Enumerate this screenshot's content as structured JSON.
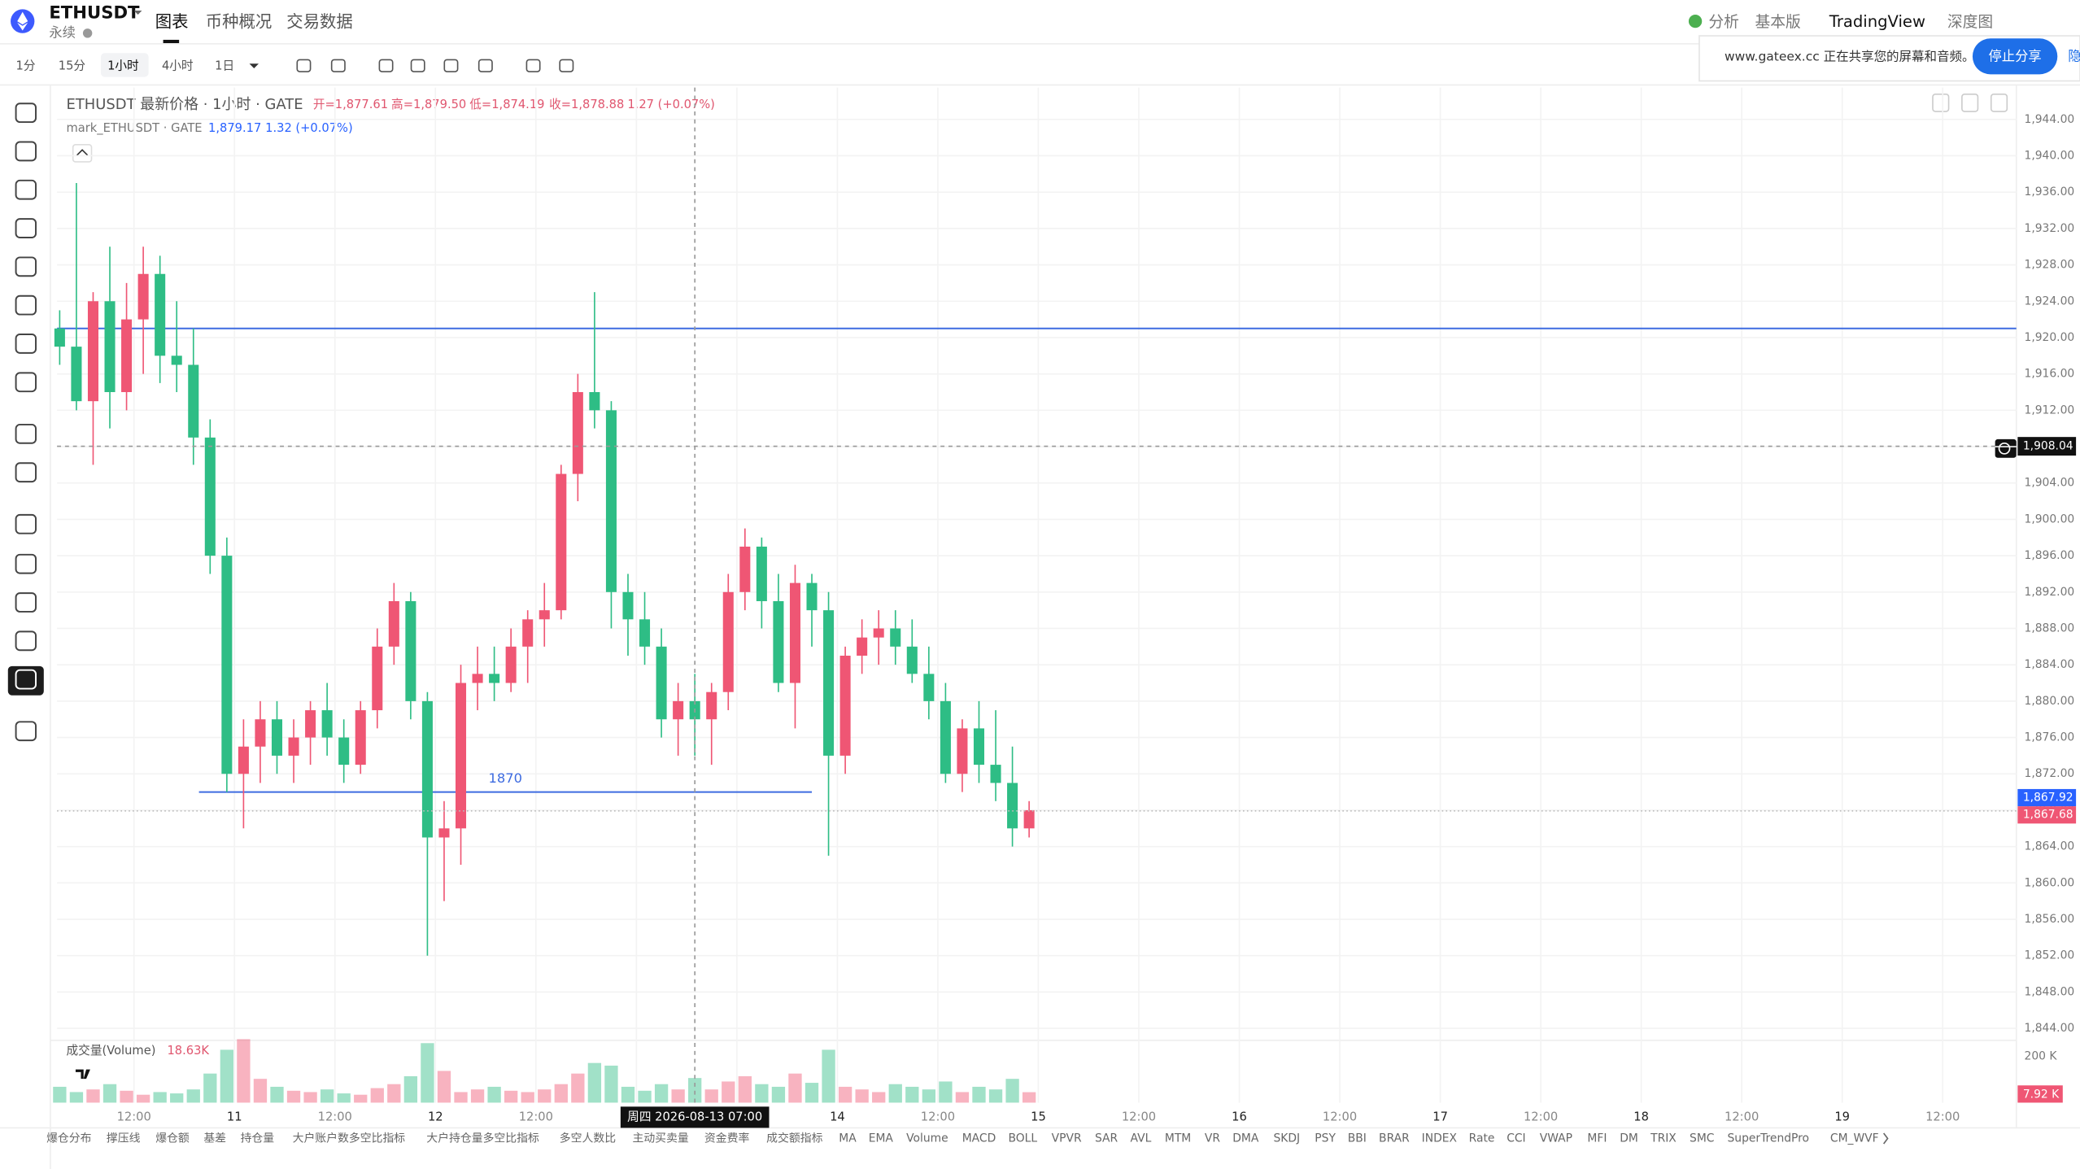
{
  "header": {
    "symbol": "ETHUSDT",
    "subtitle": "永续",
    "tabs": [
      "图表",
      "币种概况",
      "交易数据"
    ],
    "right_links": [
      "分析",
      "基本版",
      "TradingView",
      "深度图"
    ]
  },
  "share_banner": {
    "text": "www.gateex.cc 正在共享您的屏幕和音频。",
    "button": "停止分享",
    "extra": "隐"
  },
  "intervals": [
    "1分",
    "15分",
    "1小时",
    "4小时",
    "1日"
  ],
  "legend": {
    "main": "ETHUSDT 最新价格 · 1小时 · GATE",
    "open": "开=1,877.61",
    "high": "高=1,879.50",
    "low": "低=1,874.19",
    "close": "收=1,878.88",
    "change": "1.27 (+0.07%)",
    "mark": "mark_ETHUSDT · GATE",
    "mark_price": "1,879.17",
    "mark_change": "1.32 (+0.07%)"
  },
  "indicators": [
    "爆仓分布",
    "撑压线",
    "爆仓额",
    "基差",
    "持仓量",
    "大户账户数多空比指标",
    "大户持仓量多空比指标",
    "多空人数比",
    "主动买卖量",
    "资金费率",
    "成交额指标",
    "MA",
    "EMA",
    "Volume",
    "MACD",
    "BOLL",
    "VPVR",
    "SAR",
    "AVL",
    "MTM",
    "VR",
    "DMA",
    "SKDJ",
    "PSY",
    "BBI",
    "BRAR",
    "INDEX",
    "Rate",
    "CCI",
    "VWAP",
    "MFI",
    "DM",
    "TRIX",
    "SMC",
    "SuperTrendPro",
    "CM_WVF"
  ],
  "chart_data": {
    "type": "candlestick",
    "up_color": "#ef5674",
    "down_color": "#2ebd85",
    "ohlc": [
      [
        1921,
        1923,
        1917,
        1919
      ],
      [
        1919,
        1937,
        1912,
        1913
      ],
      [
        1913,
        1925,
        1906,
        1924
      ],
      [
        1924,
        1930,
        1910,
        1914
      ],
      [
        1914,
        1926,
        1912,
        1922
      ],
      [
        1922,
        1930,
        1916,
        1927
      ],
      [
        1927,
        1929,
        1915,
        1918
      ],
      [
        1918,
        1924,
        1914,
        1917
      ],
      [
        1917,
        1921,
        1906,
        1909
      ],
      [
        1909,
        1911,
        1894,
        1896
      ],
      [
        1896,
        1898,
        1870,
        1872
      ],
      [
        1872,
        1878,
        1866,
        1875
      ],
      [
        1875,
        1880,
        1871,
        1878
      ],
      [
        1878,
        1880,
        1872,
        1874
      ],
      [
        1874,
        1878,
        1871,
        1876
      ],
      [
        1876,
        1880,
        1873,
        1879
      ],
      [
        1879,
        1882,
        1874,
        1876
      ],
      [
        1876,
        1878,
        1871,
        1873
      ],
      [
        1873,
        1880,
        1872,
        1879
      ],
      [
        1879,
        1888,
        1877,
        1886
      ],
      [
        1886,
        1893,
        1884,
        1891
      ],
      [
        1891,
        1892,
        1878,
        1880
      ],
      [
        1880,
        1881,
        1852,
        1865
      ],
      [
        1865,
        1869,
        1858,
        1866
      ],
      [
        1866,
        1884,
        1862,
        1882
      ],
      [
        1882,
        1886,
        1879,
        1883
      ],
      [
        1883,
        1886,
        1880,
        1882
      ],
      [
        1882,
        1888,
        1881,
        1886
      ],
      [
        1886,
        1890,
        1882,
        1889
      ],
      [
        1889,
        1893,
        1886,
        1890
      ],
      [
        1890,
        1906,
        1889,
        1905
      ],
      [
        1905,
        1916,
        1902,
        1914
      ],
      [
        1914,
        1925,
        1910,
        1912
      ],
      [
        1912,
        1913,
        1888,
        1892
      ],
      [
        1892,
        1894,
        1885,
        1889
      ],
      [
        1889,
        1892,
        1884,
        1886
      ],
      [
        1886,
        1888,
        1876,
        1878
      ],
      [
        1878,
        1882,
        1874,
        1880
      ],
      [
        1880,
        1883,
        1874,
        1878
      ],
      [
        1878,
        1882,
        1873,
        1881
      ],
      [
        1881,
        1894,
        1879,
        1892
      ],
      [
        1892,
        1899,
        1890,
        1897
      ],
      [
        1897,
        1898,
        1888,
        1891
      ],
      [
        1891,
        1894,
        1881,
        1882
      ],
      [
        1882,
        1895,
        1877,
        1893
      ],
      [
        1893,
        1894,
        1886,
        1890
      ],
      [
        1890,
        1892,
        1863,
        1874
      ],
      [
        1874,
        1886,
        1872,
        1885
      ],
      [
        1885,
        1889,
        1883,
        1887
      ],
      [
        1887,
        1890,
        1884,
        1888
      ],
      [
        1888,
        1890,
        1884,
        1886
      ],
      [
        1886,
        1889,
        1882,
        1883
      ],
      [
        1883,
        1886,
        1878,
        1880
      ],
      [
        1880,
        1882,
        1871,
        1872
      ],
      [
        1872,
        1878,
        1870,
        1877
      ],
      [
        1877,
        1880,
        1871,
        1873
      ],
      [
        1873,
        1879,
        1869,
        1871
      ],
      [
        1871,
        1875,
        1864,
        1866
      ],
      [
        1866,
        1869,
        1865,
        1868
      ]
    ],
    "volume": [
      12,
      8,
      10,
      14,
      9,
      6,
      8,
      7,
      10,
      22,
      40,
      48,
      18,
      12,
      9,
      8,
      10,
      7,
      6,
      11,
      14,
      20,
      45,
      24,
      8,
      10,
      12,
      9,
      8,
      10,
      14,
      22,
      30,
      28,
      12,
      9,
      14,
      10,
      18.63,
      10,
      16,
      20,
      14,
      12,
      22,
      15,
      40,
      12,
      10,
      8,
      14,
      12,
      10,
      16,
      8,
      12,
      10,
      18,
      7.92
    ],
    "volume_ylim": [
      0,
      60
    ],
    "volume_label": "成交量(Volume)",
    "volume_value": "18.63K",
    "volume_axis_label": "200 K",
    "last_volume_tag": "7.92 K",
    "ylim": [
      1844,
      1944
    ],
    "yticks": [
      {
        "value": 1844,
        "label": "1,844.00"
      },
      {
        "value": 1848,
        "label": "1,848.00"
      },
      {
        "value": 1852,
        "label": "1,852.00"
      },
      {
        "value": 1856,
        "label": "1,856.00"
      },
      {
        "value": 1860,
        "label": "1,860.00"
      },
      {
        "value": 1864,
        "label": "1,864.00"
      },
      {
        "value": 1868,
        "label": "1,868.00"
      },
      {
        "value": 1872,
        "label": "1,872.00"
      },
      {
        "value": 1876,
        "label": "1,876.00"
      },
      {
        "value": 1880,
        "label": "1,880.00"
      },
      {
        "value": 1884,
        "label": "1,884.00"
      },
      {
        "value": 1888,
        "label": "1,888.00"
      },
      {
        "value": 1892,
        "label": "1,892.00"
      },
      {
        "value": 1896,
        "label": "1,896.00"
      },
      {
        "value": 1900,
        "label": "1,900.00"
      },
      {
        "value": 1904,
        "label": "1,904.00"
      },
      {
        "value": 1908,
        "label": "1,908.00"
      },
      {
        "value": 1912,
        "label": "1,912.00"
      },
      {
        "value": 1916,
        "label": "1,916.00"
      },
      {
        "value": 1920,
        "label": "1,920.00"
      },
      {
        "value": 1924,
        "label": "1,924.00"
      },
      {
        "value": 1928,
        "label": "1,928.00"
      },
      {
        "value": 1932,
        "label": "1,932.00"
      },
      {
        "value": 1936,
        "label": "1,936.00"
      },
      {
        "value": 1940,
        "label": "1,940.00"
      },
      {
        "value": 1944,
        "label": "1,944.00"
      }
    ],
    "x_labels": [
      "12:00",
      "11",
      "12:00",
      "12",
      "12:00",
      null,
      null,
      "14",
      "12:00",
      "15",
      "12:00",
      "16",
      "12:00",
      "17",
      "12:00",
      "18",
      "12:00",
      "19",
      "12:00"
    ],
    "crosshair_time": "周四 2026-08-13  07:00",
    "crosshair_price": {
      "value": 1908.04,
      "label": "1,908.04"
    },
    "price_tags": [
      {
        "value": 1867.92,
        "label": "1,867.92",
        "color": "#2962ff"
      },
      {
        "value": 1867.68,
        "label": "1,867.68",
        "color": "#ef5674"
      }
    ],
    "hline": {
      "value": 1921,
      "color": "#3d6be0"
    },
    "drawn_line": {
      "value": 1870,
      "label": "1870",
      "color": "#3d6be0"
    }
  }
}
